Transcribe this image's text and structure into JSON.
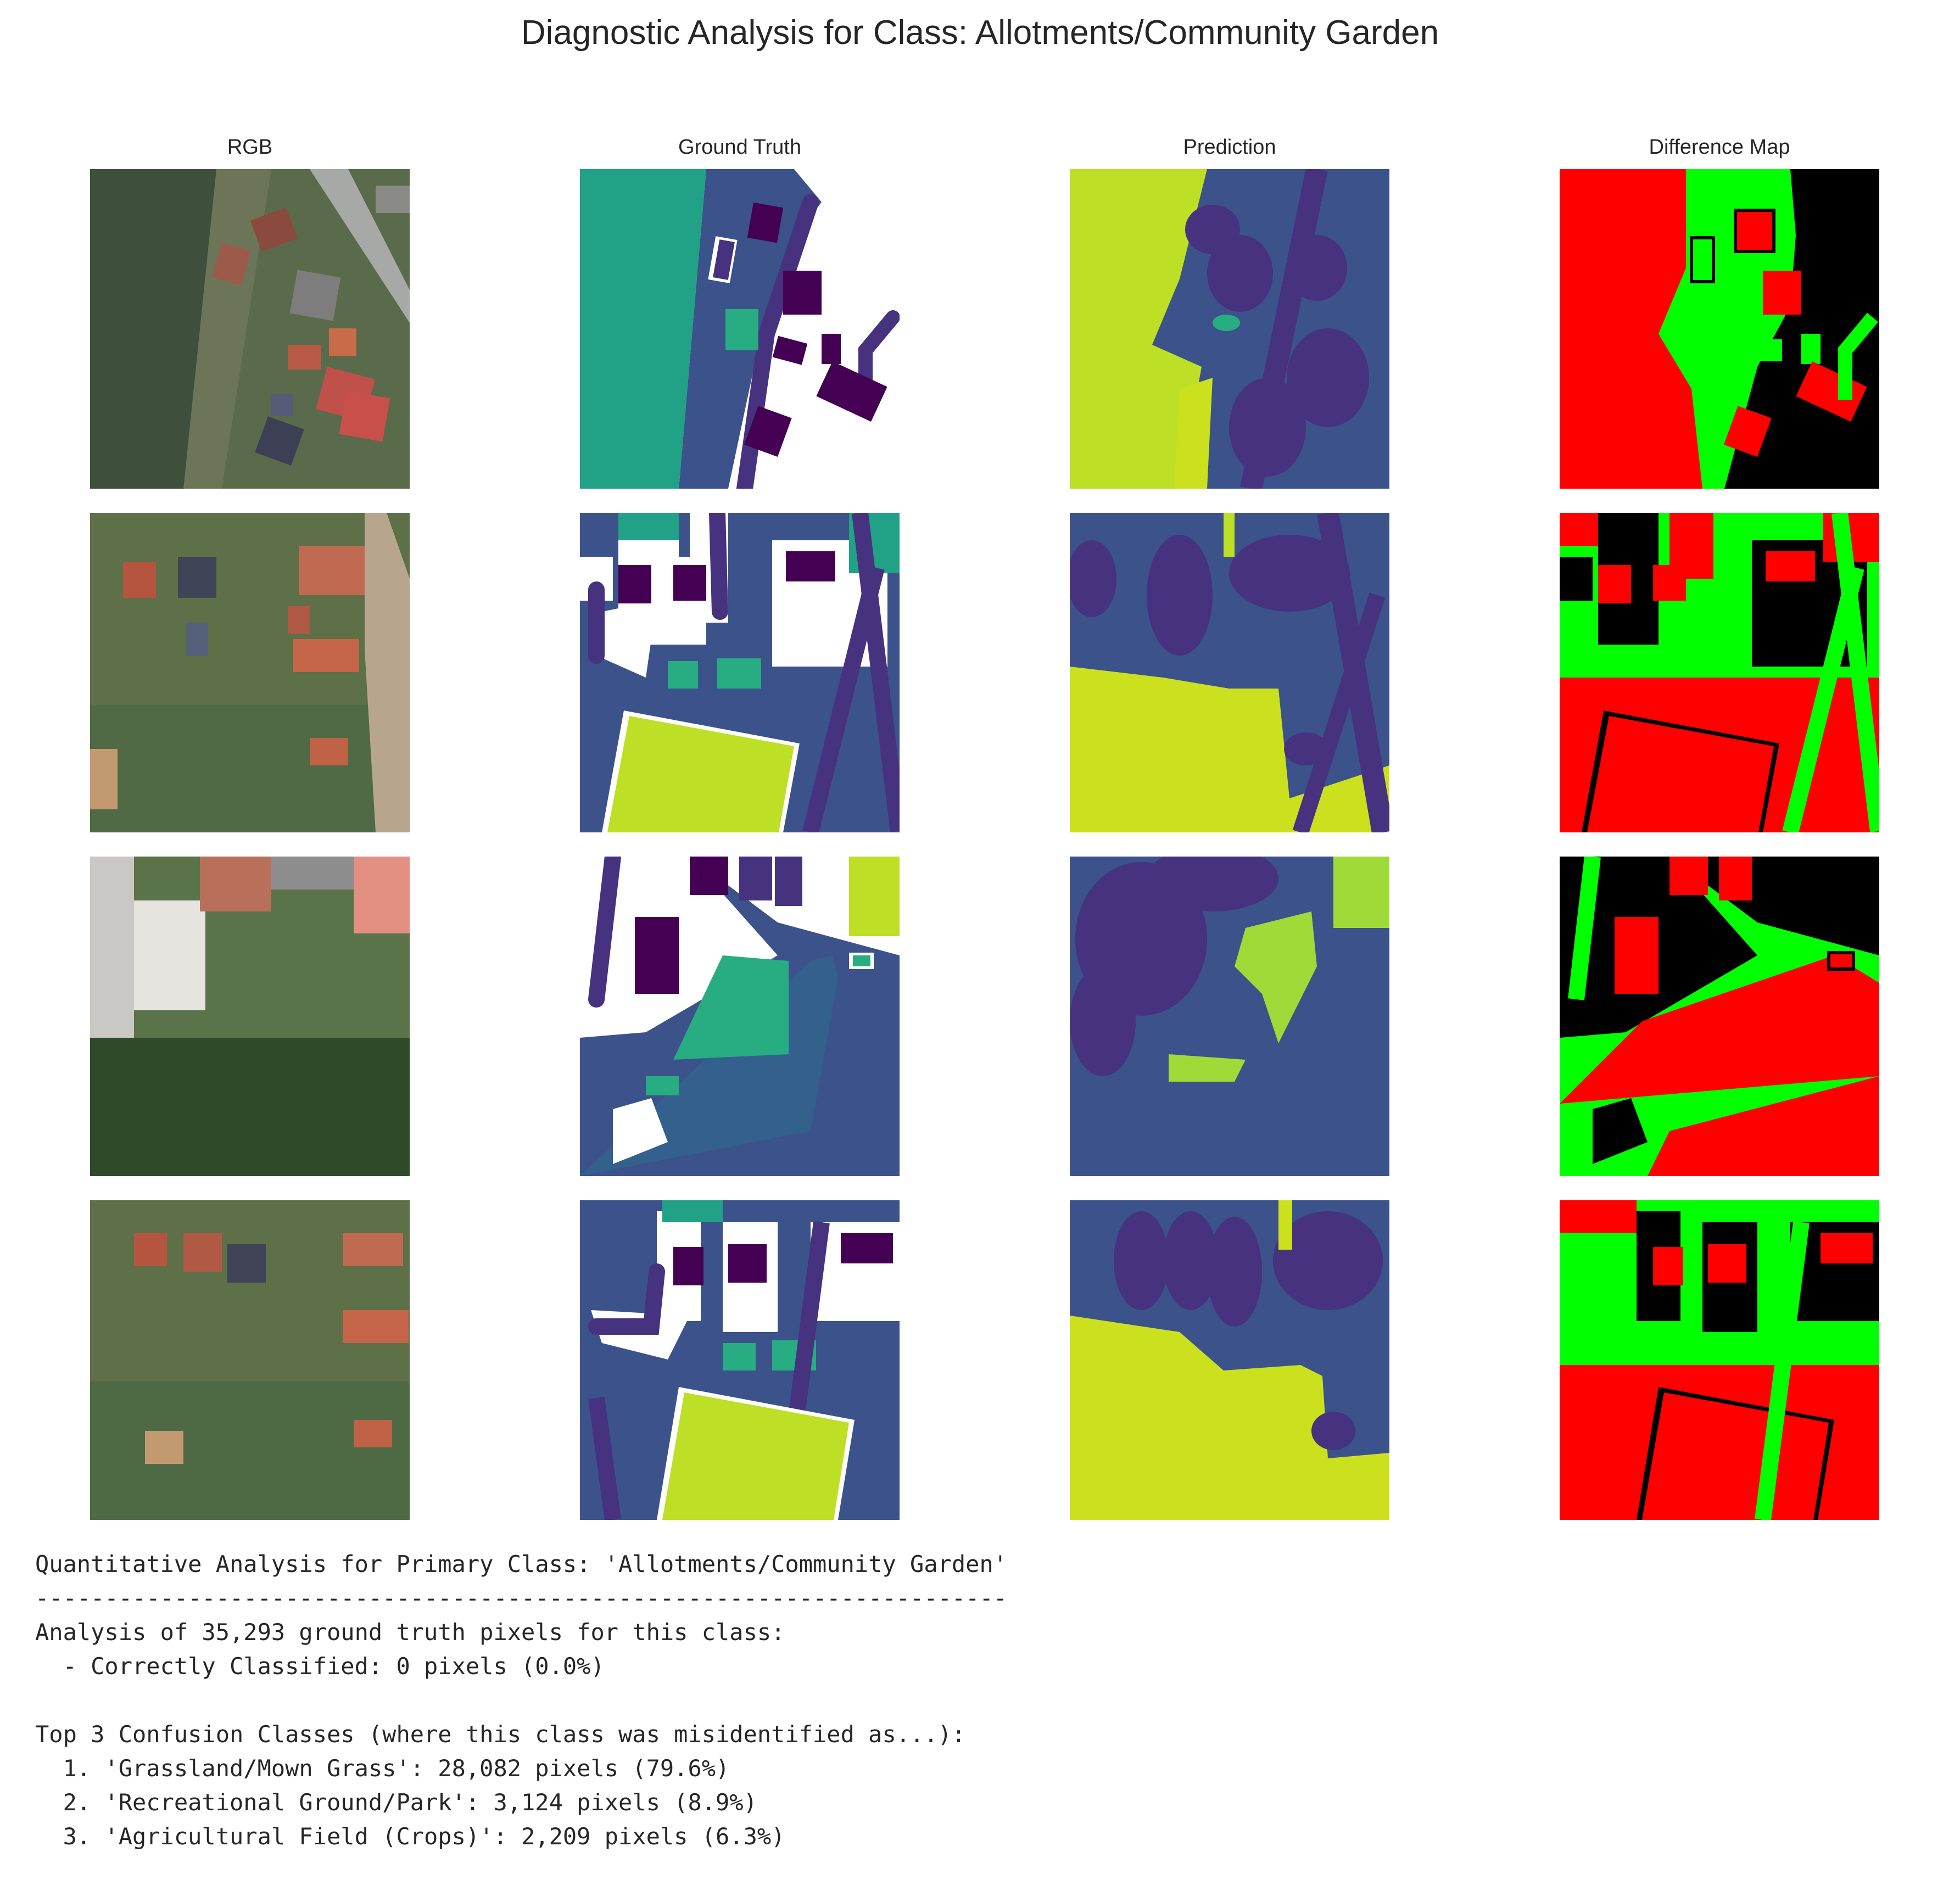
{
  "title": "Diagnostic Analysis for Class: Allotments/Community Garden",
  "columns": [
    "RGB",
    "Ground Truth",
    "Prediction",
    "Difference Map"
  ],
  "rows": 4,
  "colors": {
    "difference_correct": "#00ff00",
    "difference_error": "#ff0000",
    "difference_ignored": "#000000",
    "viridis_dark": "#440154",
    "viridis_purple": "#46327e",
    "viridis_blue": "#3b528b",
    "viridis_teal": "#21918c",
    "viridis_green": "#27ad81",
    "viridis_yellow_green": "#bddf26",
    "ignore": "#ffffff"
  },
  "report": {
    "heading": "Quantitative Analysis for Primary Class: 'Allotments/Community Garden'",
    "separator": "----------------------------------------------------------------------",
    "summary": "Analysis of 35,293 ground truth pixels for this class:",
    "correct": "  - Correctly Classified: 0 pixels (0.0%)",
    "blank": "",
    "confusion_heading": "Top 3 Confusion Classes (where this class was misidentified as...):",
    "confusions": [
      "  1. 'Grassland/Mown Grass': 28,082 pixels (79.6%)",
      "  2. 'Recreational Ground/Park': 3,124 pixels (8.9%)",
      "  3. 'Agricultural Field (Crops)': 2,209 pixels (6.3%)"
    ]
  }
}
